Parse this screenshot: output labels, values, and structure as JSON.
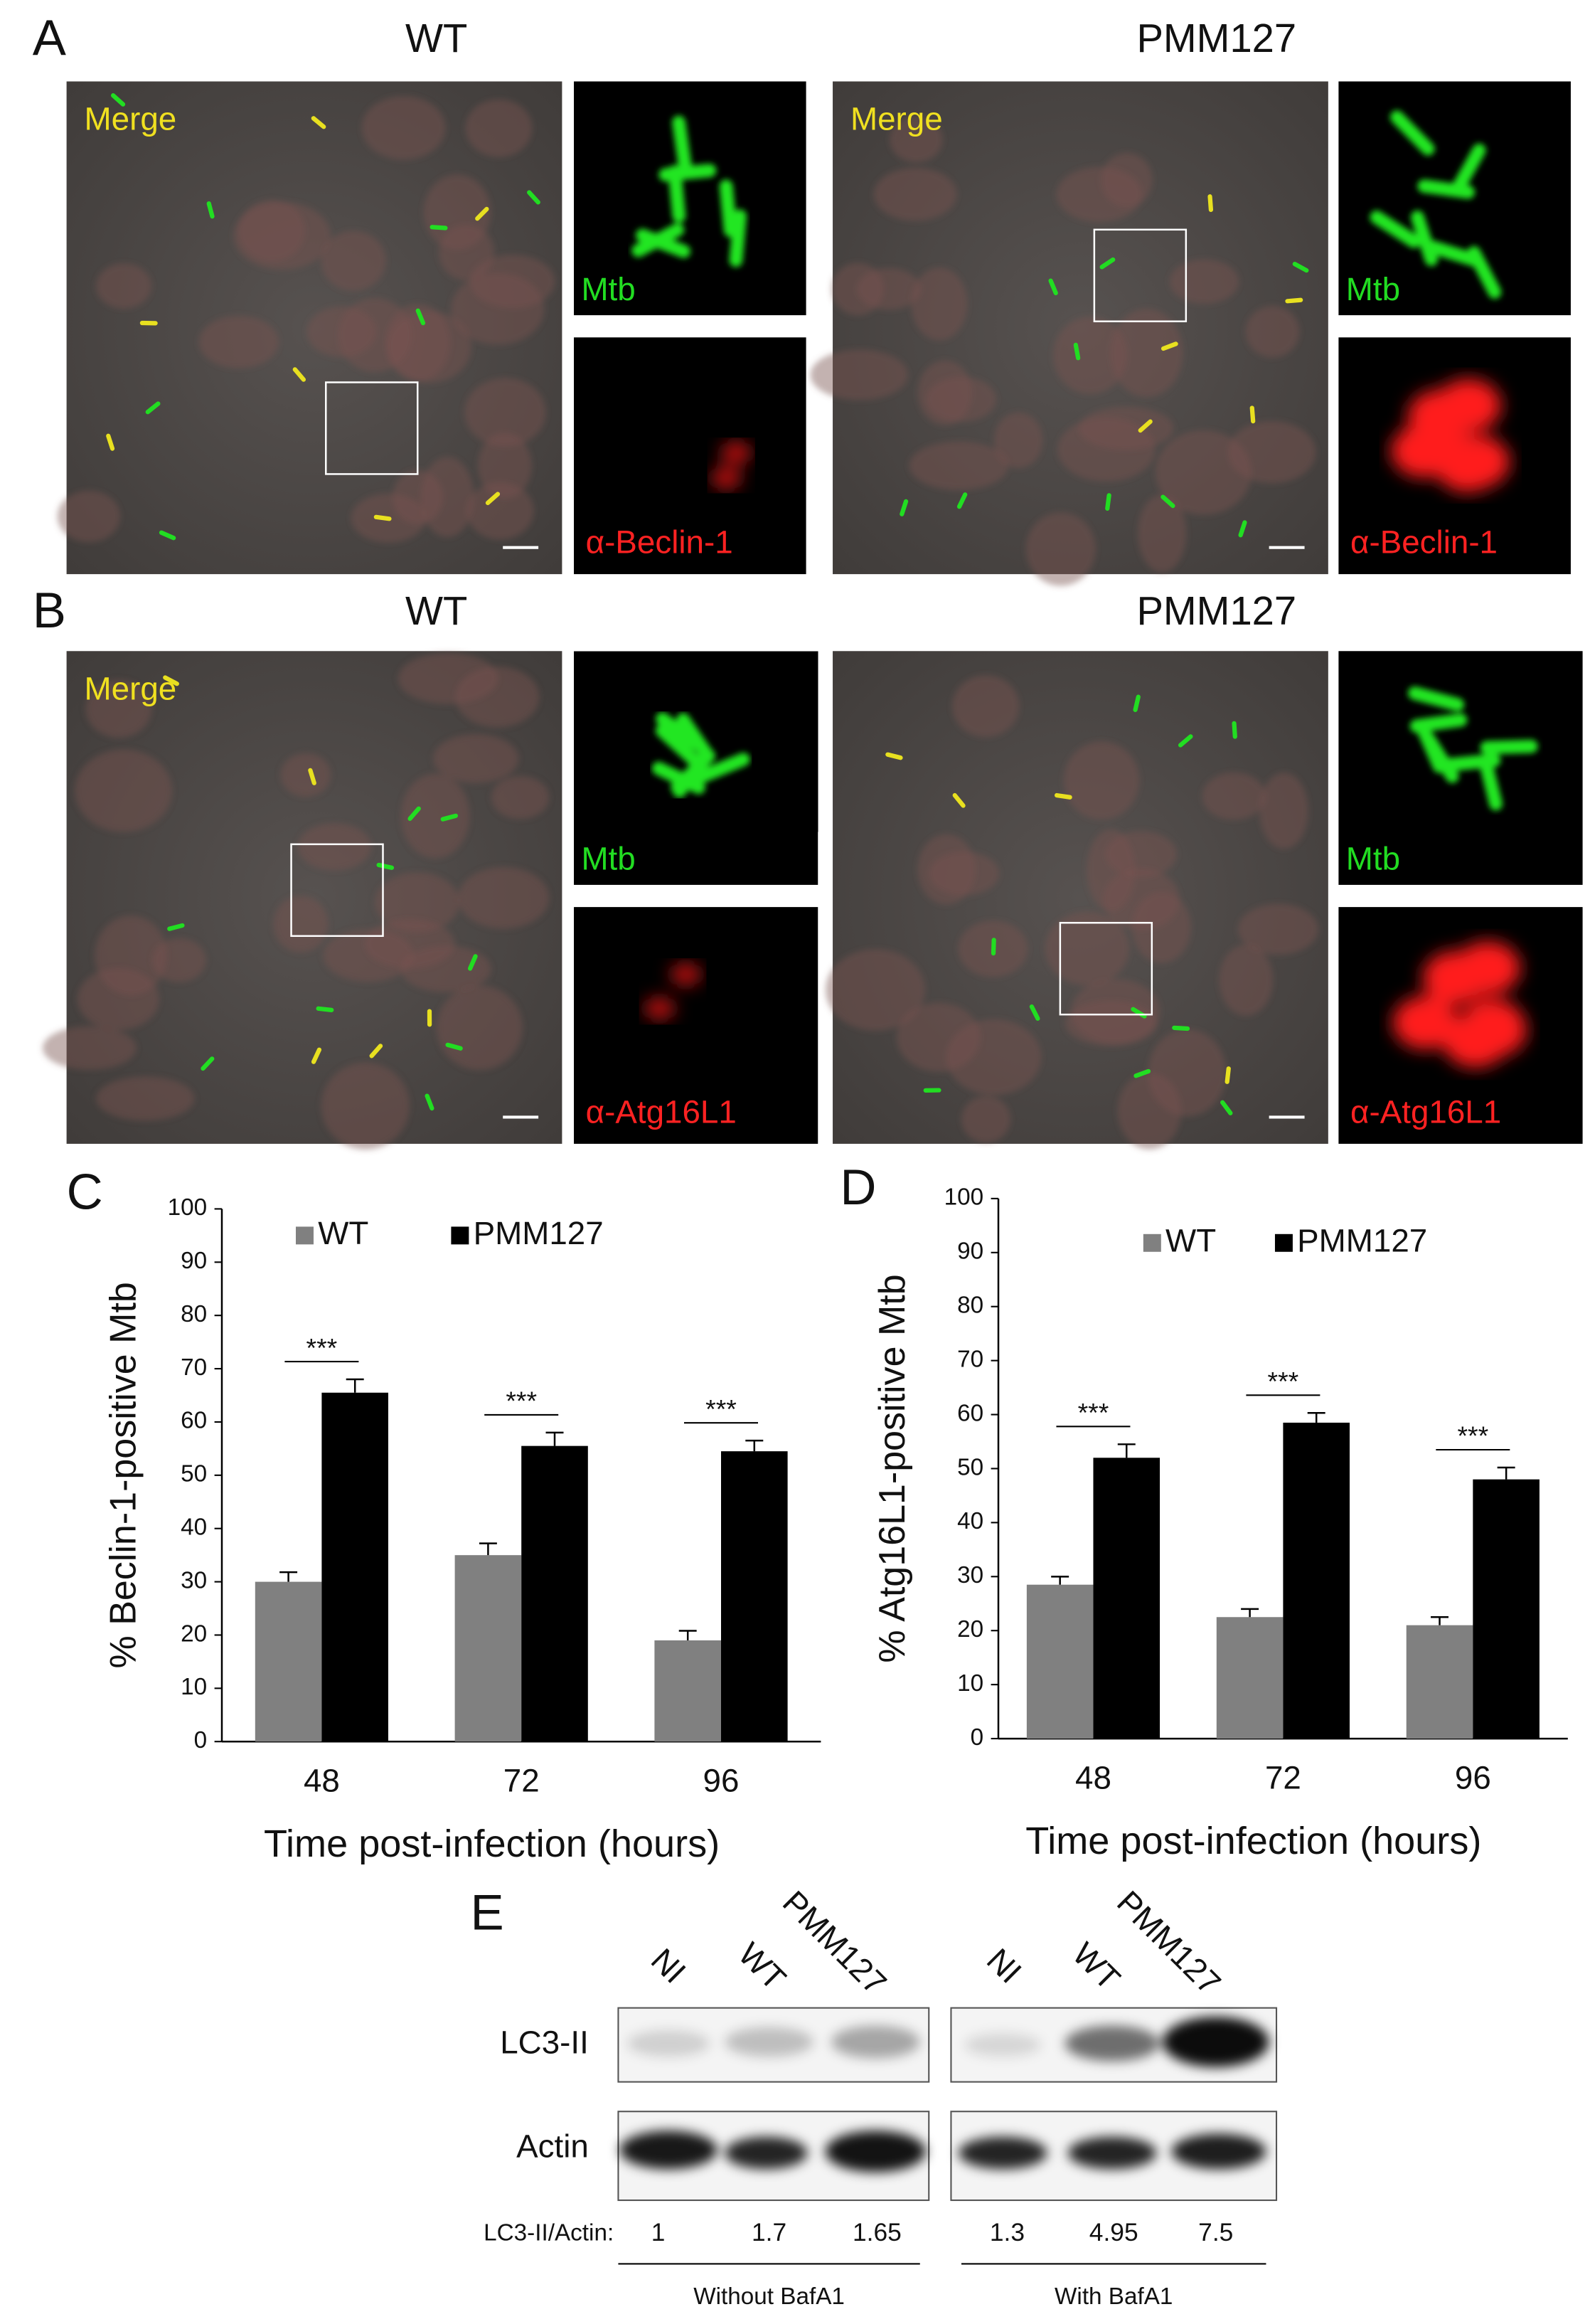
{
  "microscopy_rows": [
    {
      "panel_label": "A",
      "images": [
        {
          "title": "WT",
          "merge_label": "Merge",
          "green_label": "Mtb",
          "red_label": "α-Beclin-1"
        },
        {
          "title": "PMM127",
          "merge_label": "Merge",
          "green_label": "Mtb",
          "red_label": "α-Beclin-1"
        }
      ]
    },
    {
      "panel_label": "B",
      "images": [
        {
          "title": "WT",
          "merge_label": "Merge",
          "green_label": "Mtb",
          "red_label": "α-Atg16L1"
        },
        {
          "title": "PMM127",
          "green_label": "Mtb",
          "red_label": "α-Atg16L1"
        }
      ]
    }
  ],
  "chart_data": [
    {
      "type": "bar",
      "panel_label": "C",
      "y_label": "% Beclin-1-positive Mtb",
      "x_label": "Time post-infection (hours)",
      "categories": [
        "48",
        "72",
        "96"
      ],
      "series": [
        {
          "name": "WT",
          "color": "#808080",
          "values": [
            30,
            35,
            19
          ],
          "errors": [
            1.8,
            2.2,
            1.8
          ]
        },
        {
          "name": "PMM127",
          "color": "#000000",
          "values": [
            65.5,
            55.5,
            54.5
          ],
          "errors": [
            2.5,
            2.5,
            2
          ]
        }
      ],
      "annotations": [
        "***",
        "***",
        "***"
      ],
      "ylim": [
        0,
        100
      ],
      "yticks": [
        0,
        10,
        20,
        30,
        40,
        50,
        60,
        70,
        80,
        90,
        100
      ]
    },
    {
      "type": "bar",
      "panel_label": "D",
      "y_label": "% Atg16L1-positive Mtb",
      "x_label": "Time post-infection (hours)",
      "categories": [
        "48",
        "72",
        "96"
      ],
      "series": [
        {
          "name": "WT",
          "color": "#808080",
          "values": [
            28.5,
            22.5,
            21
          ],
          "errors": [
            1.5,
            1.5,
            1.5
          ]
        },
        {
          "name": "PMM127",
          "color": "#000000",
          "values": [
            52,
            58.5,
            48
          ],
          "errors": [
            2.5,
            1.8,
            2.2
          ]
        }
      ],
      "annotations": [
        "***",
        "***",
        "***"
      ],
      "ylim": [
        0,
        100
      ],
      "yticks": [
        0,
        10,
        20,
        30,
        40,
        50,
        60,
        70,
        80,
        90,
        100
      ]
    }
  ],
  "blot": {
    "panel_label": "E",
    "rows": [
      "LC3-II",
      "Actin"
    ],
    "ratio_label": "LC3-II/Actin:",
    "groups": [
      {
        "lanes": [
          "NI",
          "WT",
          "PMM127"
        ],
        "ratios": [
          1,
          1.7,
          1.65
        ],
        "condition": "Without BafA1"
      },
      {
        "lanes": [
          "NI",
          "WT",
          "PMM127"
        ],
        "ratios": [
          1.3,
          4.95,
          7.5
        ],
        "condition": "With BafA1"
      }
    ]
  }
}
